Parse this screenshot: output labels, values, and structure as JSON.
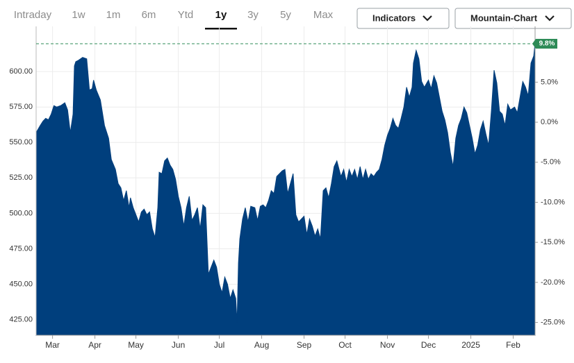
{
  "range_tabs": [
    "Intraday",
    "1w",
    "1m",
    "6m",
    "Ytd",
    "1y",
    "3y",
    "5y",
    "Max"
  ],
  "selected_tab": 5,
  "buttons": [
    "Indicators",
    "Mountain-Chart"
  ],
  "chart_data": {
    "type": "area",
    "color": "#003f7d",
    "grid": true,
    "x": [
      0,
      3,
      5,
      7,
      9,
      11,
      13,
      15,
      18,
      21,
      23,
      25,
      27,
      28,
      29,
      31,
      34,
      37,
      39,
      41,
      42,
      44,
      47,
      50,
      53,
      55,
      58,
      60,
      62,
      64,
      66,
      68,
      69,
      71,
      73,
      75,
      77,
      79,
      81,
      83,
      85,
      87,
      89,
      90,
      92,
      94,
      96,
      98,
      100,
      102,
      104,
      106,
      108,
      110,
      112,
      114,
      116,
      118,
      120,
      122,
      124,
      126,
      128,
      130,
      132,
      134,
      136,
      138,
      140,
      142,
      144,
      146,
      147,
      148,
      149,
      151,
      153,
      155,
      157,
      160,
      162,
      164,
      166,
      168,
      170,
      172,
      174,
      176,
      178,
      180,
      182,
      184,
      186,
      188,
      190,
      192,
      194,
      196,
      198,
      200,
      202,
      204,
      206,
      208,
      210,
      212,
      214,
      216,
      218,
      220,
      223,
      225,
      227,
      229,
      231,
      233,
      235,
      237,
      239,
      241,
      243,
      245,
      247,
      249,
      251,
      253,
      255,
      257,
      259,
      261,
      263,
      265,
      267,
      269,
      271,
      273,
      275,
      276,
      278,
      280,
      282,
      284,
      287,
      289,
      291,
      293,
      295,
      297,
      299,
      301,
      303,
      305,
      307,
      309,
      311,
      313,
      315,
      317,
      319,
      321,
      323,
      325,
      327,
      329,
      331,
      333,
      335,
      337,
      339,
      341,
      343,
      345,
      347,
      350,
      352,
      354,
      356,
      358,
      360,
      362,
      364,
      365
    ],
    "values": [
      557,
      562,
      565,
      567,
      566,
      570,
      576,
      575,
      576,
      578,
      573,
      557,
      570,
      604,
      607,
      608,
      610,
      609,
      587,
      588,
      594,
      587,
      580,
      562,
      553,
      538,
      531,
      521,
      518,
      509,
      516,
      504,
      511,
      504,
      499,
      494,
      501,
      503,
      499,
      501,
      489,
      483,
      504,
      529,
      528,
      537,
      539,
      534,
      531,
      524,
      512,
      504,
      491,
      504,
      512,
      495,
      499,
      504,
      489,
      506,
      504,
      457,
      462,
      467,
      462,
      450,
      444,
      455,
      450,
      440,
      446,
      440,
      423,
      465,
      482,
      496,
      504,
      494,
      505,
      504,
      495,
      505,
      506,
      504,
      509,
      516,
      514,
      526,
      528,
      530,
      531,
      514,
      521,
      528,
      499,
      494,
      496,
      498,
      485,
      496,
      491,
      484,
      489,
      482,
      516,
      518,
      511,
      521,
      533,
      537,
      526,
      531,
      522,
      531,
      526,
      531,
      524,
      533,
      524,
      531,
      524,
      528,
      526,
      529,
      531,
      538,
      548,
      555,
      560,
      567,
      562,
      560,
      567,
      575,
      589,
      582,
      589,
      606,
      615,
      609,
      593,
      589,
      594,
      588,
      597,
      592,
      582,
      572,
      566,
      557,
      543,
      533,
      553,
      562,
      567,
      575,
      571,
      562,
      553,
      542,
      548,
      559,
      565,
      556,
      548,
      572,
      601,
      592,
      572,
      570,
      562,
      577,
      573,
      575,
      571,
      582,
      593,
      589,
      583,
      606,
      611,
      620
    ],
    "xlim": [
      0,
      365
    ],
    "xticks": [
      {
        "value": 12,
        "label": "Mar"
      },
      {
        "value": 43,
        "label": "Apr"
      },
      {
        "value": 73,
        "label": "May"
      },
      {
        "value": 104,
        "label": "Jun"
      },
      {
        "value": 134,
        "label": "Jul"
      },
      {
        "value": 165,
        "label": "Aug"
      },
      {
        "value": 196,
        "label": "Sep"
      },
      {
        "value": 226,
        "label": "Oct"
      },
      {
        "value": 257,
        "label": "Nov"
      },
      {
        "value": 287,
        "label": "Dec"
      },
      {
        "value": 318,
        "label": "2025"
      },
      {
        "value": 349,
        "label": "Feb"
      }
    ],
    "ylim": [
      414,
      627
    ],
    "yticks": [
      {
        "value": 425,
        "label": "425.00"
      },
      {
        "value": 450,
        "label": "450.00"
      },
      {
        "value": 475,
        "label": "475.00"
      },
      {
        "value": 500,
        "label": "500.00"
      },
      {
        "value": 525,
        "label": "525.00"
      },
      {
        "value": 550,
        "label": "550.00"
      },
      {
        "value": 575,
        "label": "575.00"
      },
      {
        "value": 600,
        "label": "600.00"
      }
    ],
    "y2lim": [
      -26.6,
      11.1
    ],
    "y2ticks": [
      {
        "value": 5,
        "label": "5.0%"
      },
      {
        "value": 0,
        "label": "0.0%"
      },
      {
        "value": -5,
        "label": "-5.0%"
      },
      {
        "value": -10,
        "label": "-10.0%"
      },
      {
        "value": -15,
        "label": "-15.0%"
      },
      {
        "value": -20,
        "label": "-20.0%"
      },
      {
        "value": -25,
        "label": "-25.0%"
      }
    ],
    "last_change": {
      "value": 9.8,
      "label": "9.8%"
    },
    "last_change_color": "#2e8b57"
  }
}
